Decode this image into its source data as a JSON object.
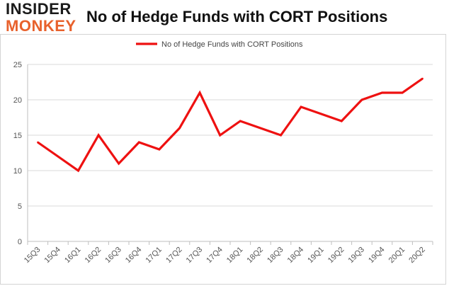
{
  "brand": {
    "logo_top": "INSIDER",
    "logo_bottom": "MONKEY"
  },
  "header": {
    "title": "No of Hedge Funds with CORT Positions"
  },
  "colors": {
    "line": "#ee1111",
    "grid": "#d9d9d9",
    "logo_accent": "#e8612c"
  },
  "chart_data": {
    "type": "line",
    "title": "No of Hedge Funds with CORT Positions",
    "xlabel": "",
    "ylabel": "",
    "categories": [
      "15Q3",
      "15Q4",
      "16Q1",
      "16Q2",
      "16Q3",
      "16Q4",
      "17Q1",
      "17Q2",
      "17Q3",
      "17Q4",
      "18Q1",
      "18Q2",
      "18Q3",
      "18Q4",
      "19Q1",
      "19Q2",
      "19Q3",
      "19Q4",
      "20Q1",
      "20Q2"
    ],
    "series": [
      {
        "name": "No of Hedge Funds with CORT Positions",
        "values": [
          14,
          12,
          10,
          15,
          11,
          14,
          13,
          16,
          21,
          15,
          17,
          16,
          15,
          19,
          18,
          17,
          20,
          21,
          21,
          23
        ]
      }
    ],
    "ylim": [
      0,
      25
    ],
    "yticks": [
      0,
      5,
      10,
      15,
      20,
      25
    ],
    "grid": true,
    "legend_position": "top-center"
  }
}
